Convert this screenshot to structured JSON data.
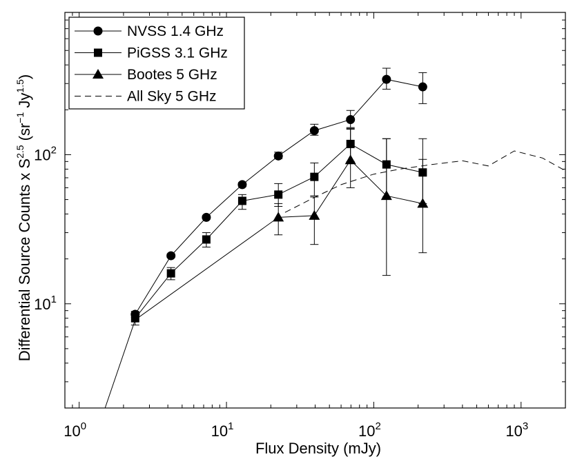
{
  "chart_data": {
    "type": "line",
    "xscale": "log",
    "yscale": "log",
    "xlim": [
      0.8,
      2000
    ],
    "ylim": [
      2,
      900
    ],
    "xlabel": "Flux Density (mJy)",
    "ylabel": {
      "prefix": "Differential Source Counts x S",
      "exp1": "2.5",
      "mid1": " (sr",
      "exp2": "−1",
      "mid2": " Jy",
      "exp3": "1.5",
      "suffix": ")"
    },
    "x_ticks": [
      {
        "value": 1,
        "base": "10",
        "exp": "0"
      },
      {
        "value": 10,
        "base": "10",
        "exp": "1"
      },
      {
        "value": 100,
        "base": "10",
        "exp": "2"
      },
      {
        "value": 1000,
        "base": "10",
        "exp": "3"
      }
    ],
    "y_ticks": [
      {
        "value": 10,
        "base": "10",
        "exp": "1"
      },
      {
        "value": 100,
        "base": "10",
        "exp": "2"
      }
    ],
    "series": [
      {
        "name": "NVSS 1.4 GHz",
        "marker": "circle",
        "line": "solid",
        "x": [
          2.4,
          4.2,
          7.3,
          12.8,
          22.5,
          39.5,
          69.5,
          122,
          215
        ],
        "y": [
          8.5,
          21,
          38,
          63,
          98,
          145,
          172,
          320,
          285
        ],
        "err_lo": [
          8.1,
          20.4,
          37,
          61,
          94,
          135,
          152,
          275,
          220
        ],
        "err_hi": [
          8.9,
          21.6,
          39,
          65,
          104,
          160,
          198,
          380,
          355
        ]
      },
      {
        "name": "PiGSS 3.1 GHz",
        "marker": "square",
        "line": "solid",
        "x": [
          2.4,
          4.2,
          7.3,
          12.8,
          22.5,
          39.5,
          69.5,
          122,
          215
        ],
        "y": [
          8.0,
          16,
          27,
          49,
          54,
          71,
          118,
          86,
          76
        ],
        "err_lo": [
          7.2,
          14.5,
          24,
          43,
          45,
          53,
          90,
          52,
          47
        ],
        "err_hi": [
          8.8,
          17.5,
          30,
          54,
          64,
          88,
          148,
          128,
          128
        ]
      },
      {
        "name": "Bootes 5 GHz",
        "marker": "triangle",
        "line": "solid",
        "x": [
          1.5,
          2.4,
          22.5,
          39.5,
          69.5,
          122,
          215
        ],
        "y": [
          2,
          7.8,
          38,
          39,
          92,
          53,
          47
        ],
        "err_lo": [
          null,
          null,
          29,
          25,
          60,
          15.5,
          22
        ],
        "err_hi": [
          null,
          null,
          47,
          52,
          150,
          128,
          93
        ],
        "marker_mask": [
          false,
          false,
          true,
          true,
          true,
          true,
          true
        ]
      },
      {
        "name": "All Sky 5 GHz",
        "marker": "none",
        "line": "dashed",
        "x": [
          25,
          40,
          60,
          100,
          150,
          250,
          400,
          600,
          900,
          1400,
          2000
        ],
        "y": [
          41,
          52,
          63,
          74,
          80,
          86,
          91,
          84,
          106,
          95,
          78
        ]
      }
    ],
    "legend_position": "top-left"
  }
}
